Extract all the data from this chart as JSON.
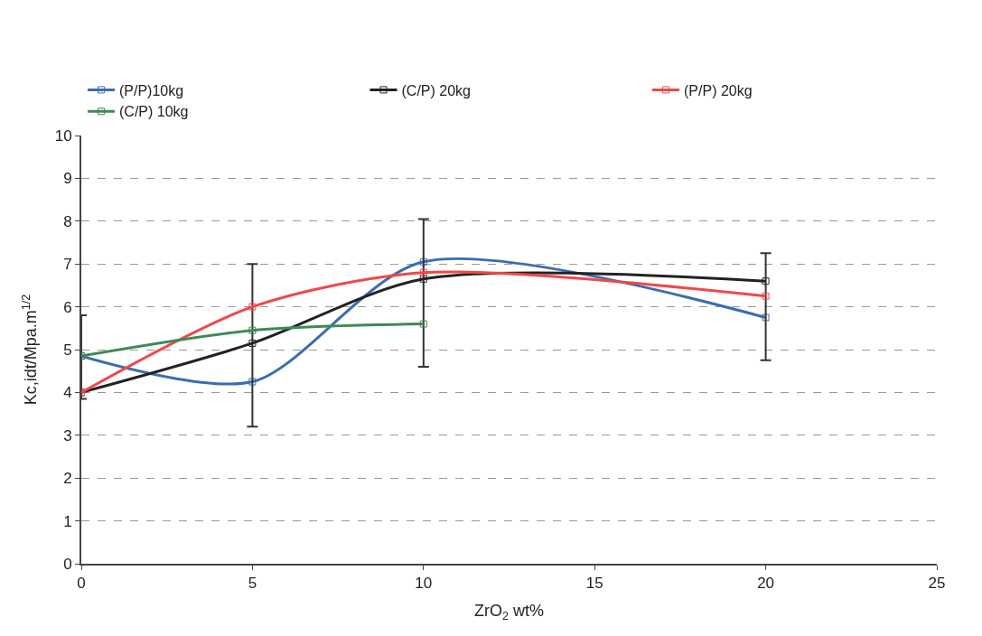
{
  "chart_data": {
    "type": "line",
    "xlabel": "ZrO$_{2}$ wt%",
    "ylabel": "Kc,idt/Mpa.m$^{1/2}$",
    "xlim": [
      0,
      25
    ],
    "xticks": [
      0,
      5,
      10,
      15,
      20,
      25
    ],
    "ylim": [
      0,
      10
    ],
    "yticks": [
      0,
      1,
      2,
      3,
      4,
      5,
      6,
      7,
      8,
      9,
      10
    ],
    "grid": "y",
    "legend": "top",
    "marker": "square",
    "series": [
      {
        "name": "(P/P)10kg",
        "color": "#3a6db0",
        "x": [
          0,
          5,
          10,
          20
        ],
        "values": [
          4.85,
          4.25,
          7.05,
          5.75
        ]
      },
      {
        "name": "(C/P) 20kg",
        "color": "#222222",
        "x": [
          0,
          5,
          10,
          20
        ],
        "values": [
          4.0,
          5.15,
          6.65,
          6.6
        ],
        "errors": [
          [
            3.85,
            5.8
          ],
          [
            3.2,
            7.0
          ],
          [
            4.6,
            8.05
          ],
          [
            4.75,
            7.25
          ]
        ]
      },
      {
        "name": "(P/P) 20kg",
        "color": "#f04848",
        "x": [
          0,
          5,
          10,
          20
        ],
        "values": [
          4.0,
          6.0,
          6.8,
          6.25
        ]
      },
      {
        "name": "(C/P) 10kg",
        "color": "#3e8a55",
        "x": [
          0,
          5,
          10
        ],
        "values": [
          4.85,
          5.45,
          5.6
        ]
      }
    ]
  }
}
